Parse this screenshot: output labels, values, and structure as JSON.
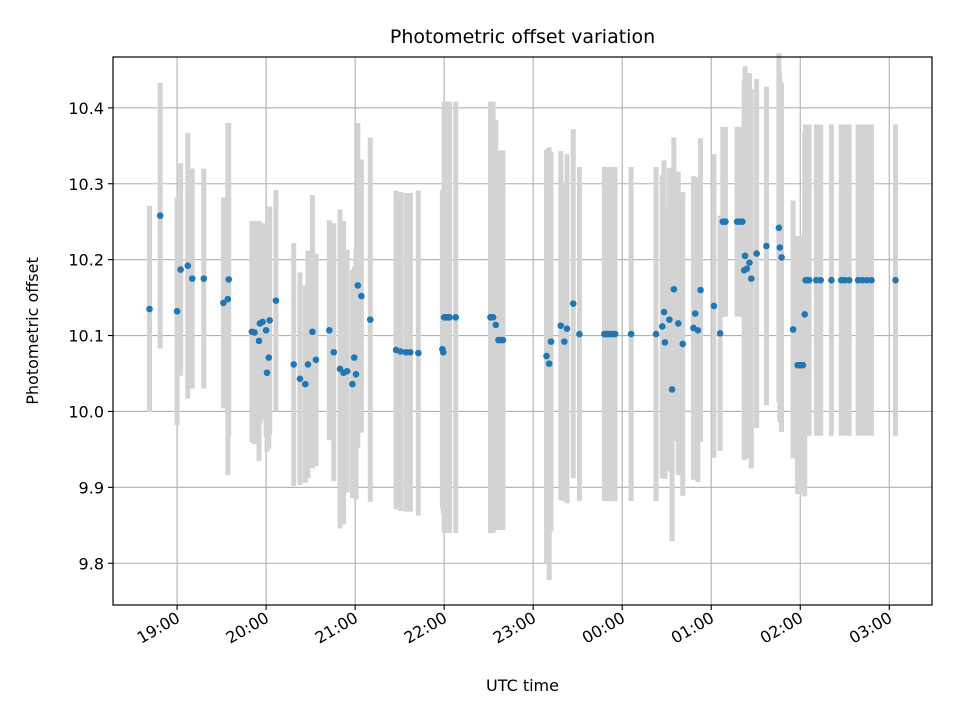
{
  "chart_data": {
    "type": "scatter",
    "title": "Photometric offset variation",
    "xlabel": "UTC time",
    "ylabel": "Photometric offset",
    "x_unit": "hours since 19:00 UTC",
    "x_ticks": [
      {
        "value": 0,
        "label": "19:00"
      },
      {
        "value": 1,
        "label": "20:00"
      },
      {
        "value": 2,
        "label": "21:00"
      },
      {
        "value": 3,
        "label": "22:00"
      },
      {
        "value": 4,
        "label": "23:00"
      },
      {
        "value": 5,
        "label": "00:00"
      },
      {
        "value": 6,
        "label": "01:00"
      },
      {
        "value": 7,
        "label": "02:00"
      },
      {
        "value": 8,
        "label": "03:00"
      }
    ],
    "y_ticks": [
      {
        "value": 9.8,
        "label": "9.8"
      },
      {
        "value": 9.9,
        "label": "9.9"
      },
      {
        "value": 10.0,
        "label": "10.0"
      },
      {
        "value": 10.1,
        "label": "10.1"
      },
      {
        "value": 10.2,
        "label": "10.2"
      },
      {
        "value": 10.3,
        "label": "10.3"
      },
      {
        "value": 10.4,
        "label": "10.4"
      }
    ],
    "xlim": [
      -0.72,
      8.48
    ],
    "ylim": [
      9.745,
      10.467
    ],
    "grid": true,
    "marker_color": "#1f77b4",
    "errorbar_color": "#d3d3d3",
    "series": [
      {
        "x": [
          -0.31,
          -0.19,
          0.0,
          0.04,
          0.12,
          0.17,
          0.3,
          0.52,
          0.57,
          0.58,
          0.84,
          0.87,
          0.92,
          0.93,
          0.96,
          1.0,
          1.01,
          1.03,
          1.04,
          1.11,
          1.31,
          1.38,
          1.44,
          1.47,
          1.52,
          1.56,
          1.71,
          1.76,
          1.83,
          1.87,
          1.91,
          1.97,
          1.99,
          2.01,
          2.03,
          2.07,
          2.17,
          2.46,
          2.51,
          2.57,
          2.62,
          2.71,
          2.98,
          2.99,
          3.0,
          3.01,
          3.03,
          3.04,
          3.05,
          3.06,
          3.13,
          3.52,
          3.53,
          3.55,
          3.58,
          3.61,
          3.63,
          3.66,
          4.15,
          4.18,
          4.2,
          4.31,
          4.35,
          4.38,
          4.45,
          4.52,
          4.8,
          4.82,
          4.84,
          4.86,
          4.89,
          4.92,
          5.1,
          5.38,
          5.45,
          5.47,
          5.48,
          5.53,
          5.56,
          5.58,
          5.63,
          5.68,
          5.8,
          5.82,
          5.85,
          5.88,
          6.03,
          6.1,
          6.13,
          6.16,
          6.29,
          6.32,
          6.35,
          6.37,
          6.38,
          6.4,
          6.43,
          6.45,
          6.51,
          6.62,
          6.76,
          6.77,
          6.79,
          6.92,
          6.97,
          6.99,
          7.01,
          7.03,
          7.05,
          7.06,
          7.08,
          7.1,
          7.18,
          7.23,
          7.35,
          7.46,
          7.5,
          7.55,
          7.65,
          7.7,
          7.75,
          7.8,
          8.07
        ],
        "y": [
          10.135,
          10.258,
          10.132,
          10.187,
          10.192,
          10.175,
          10.175,
          10.143,
          10.148,
          10.174,
          10.105,
          10.104,
          10.093,
          10.116,
          10.118,
          10.107,
          10.051,
          10.071,
          10.12,
          10.146,
          10.062,
          10.043,
          10.036,
          10.062,
          10.105,
          10.068,
          10.107,
          10.078,
          10.056,
          10.051,
          10.053,
          10.036,
          10.071,
          10.049,
          10.166,
          10.152,
          10.121,
          10.081,
          10.079,
          10.078,
          10.078,
          10.077,
          10.082,
          10.078,
          10.124,
          10.124,
          10.124,
          10.124,
          10.124,
          10.124,
          10.124,
          10.124,
          10.124,
          10.124,
          10.114,
          10.094,
          10.094,
          10.094,
          10.073,
          10.063,
          10.092,
          10.113,
          10.092,
          10.109,
          10.142,
          10.102,
          10.102,
          10.102,
          10.102,
          10.102,
          10.102,
          10.102,
          10.102,
          10.102,
          10.112,
          10.131,
          10.091,
          10.121,
          10.029,
          10.161,
          10.116,
          10.089,
          10.11,
          10.129,
          10.107,
          10.16,
          10.139,
          10.103,
          10.25,
          10.25,
          10.25,
          10.25,
          10.25,
          10.186,
          10.205,
          10.188,
          10.196,
          10.175,
          10.208,
          10.218,
          10.242,
          10.216,
          10.203,
          10.108,
          10.061,
          10.061,
          10.061,
          10.061,
          10.128,
          10.173,
          10.173,
          10.173,
          10.173,
          10.173,
          10.173,
          10.173,
          10.173,
          10.173,
          10.173,
          10.173,
          10.173,
          10.173,
          10.173
        ],
        "yerr": [
          0.136,
          0.175,
          0.15,
          0.14,
          0.175,
          0.145,
          0.145,
          0.139,
          0.232,
          0.206,
          0.146,
          0.147,
          0.158,
          0.133,
          0.13,
          0.14,
          0.104,
          0.12,
          0.15,
          0.146,
          0.16,
          0.14,
          0.13,
          0.15,
          0.18,
          0.14,
          0.145,
          0.17,
          0.21,
          0.2,
          0.16,
          0.15,
          0.12,
          0.165,
          0.214,
          0.18,
          0.24,
          0.21,
          0.21,
          0.21,
          0.21,
          0.214,
          0.21,
          0.214,
          0.284,
          0.284,
          0.284,
          0.284,
          0.284,
          0.284,
          0.284,
          0.284,
          0.284,
          0.284,
          0.27,
          0.25,
          0.25,
          0.25,
          0.272,
          0.285,
          0.25,
          0.23,
          0.21,
          0.23,
          0.23,
          0.22,
          0.22,
          0.22,
          0.22,
          0.22,
          0.22,
          0.22,
          0.22,
          0.22,
          0.2,
          0.2,
          0.18,
          0.2,
          0.2,
          0.2,
          0.2,
          0.2,
          0.2,
          0.18,
          0.2,
          0.2,
          0.2,
          0.155,
          0.125,
          0.125,
          0.125,
          0.125,
          0.125,
          0.25,
          0.25,
          0.25,
          0.25,
          0.25,
          0.23,
          0.21,
          0.23,
          0.23,
          0.23,
          0.17,
          0.17,
          0.17,
          0.17,
          0.17,
          0.24,
          0.205,
          0.205,
          0.205,
          0.205,
          0.205,
          0.205,
          0.205,
          0.205,
          0.205,
          0.205,
          0.205,
          0.205,
          0.205,
          0.205
        ]
      }
    ]
  }
}
